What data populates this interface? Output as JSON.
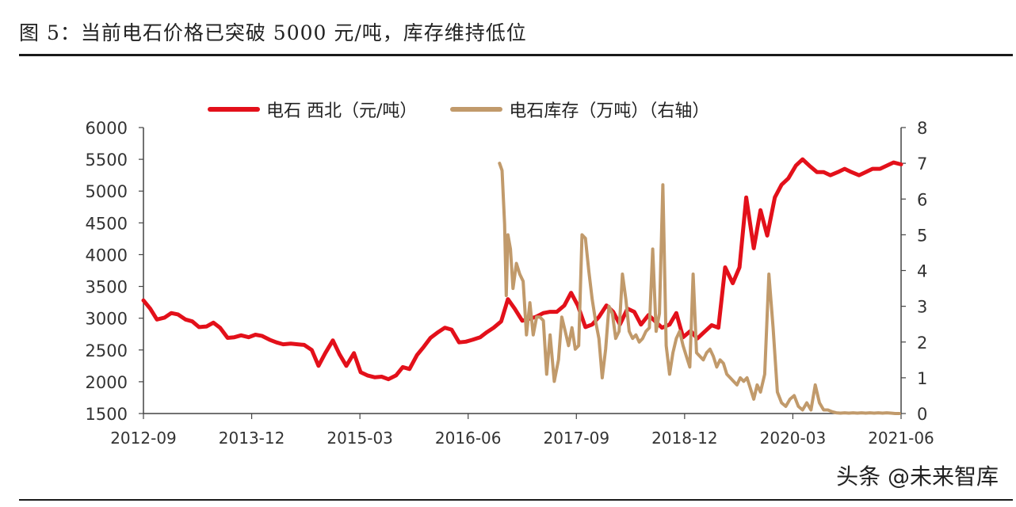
{
  "figure_title": "图 5：当前电石价格已突破 5000 元/吨，库存维持低位",
  "watermark": "头条 @未来智库",
  "colors": {
    "price": "#e3101a",
    "inventory": "#c19a6b",
    "axis": "#444444"
  },
  "chart_data": {
    "type": "line",
    "title": "",
    "x_labels": [
      "2012-09",
      "2013-12",
      "2015-03",
      "2016-06",
      "2017-09",
      "2018-12",
      "2020-03",
      "2021-06"
    ],
    "x_range": [
      2012.67,
      2021.67
    ],
    "y_left": {
      "range": [
        1500,
        6000
      ],
      "ticks": [
        1500,
        2000,
        2500,
        3000,
        3500,
        4000,
        4500,
        5000,
        5500,
        6000
      ]
    },
    "y_right": {
      "range": [
        0,
        8
      ],
      "ticks": [
        0,
        1,
        2,
        3,
        4,
        5,
        6,
        7,
        8
      ]
    },
    "series": [
      {
        "name": "电石 西北（元/吨）",
        "axis": "left",
        "color": "#e3101a",
        "x": [
          2012.67,
          2012.75,
          2012.83,
          2012.92,
          2013.0,
          2013.08,
          2013.17,
          2013.25,
          2013.33,
          2013.42,
          2013.5,
          2013.58,
          2013.67,
          2013.75,
          2013.83,
          2013.92,
          2014.0,
          2014.08,
          2014.17,
          2014.25,
          2014.33,
          2014.42,
          2014.5,
          2014.58,
          2014.67,
          2014.75,
          2014.83,
          2014.92,
          2015.0,
          2015.08,
          2015.17,
          2015.25,
          2015.33,
          2015.42,
          2015.5,
          2015.58,
          2015.67,
          2015.75,
          2015.83,
          2015.92,
          2016.0,
          2016.08,
          2016.17,
          2016.25,
          2016.33,
          2016.42,
          2016.5,
          2016.58,
          2016.67,
          2016.75,
          2016.83,
          2016.92,
          2017.0,
          2017.08,
          2017.17,
          2017.25,
          2017.33,
          2017.42,
          2017.5,
          2017.58,
          2017.67,
          2017.75,
          2017.83,
          2017.92,
          2018.0,
          2018.08,
          2018.17,
          2018.25,
          2018.33,
          2018.42,
          2018.5,
          2018.58,
          2018.67,
          2018.75,
          2018.83,
          2018.92,
          2019.0,
          2019.08,
          2019.17,
          2019.25,
          2019.33,
          2019.42,
          2019.5,
          2019.58,
          2019.67,
          2019.75,
          2019.83,
          2019.92,
          2020.0,
          2020.08,
          2020.17,
          2020.25,
          2020.33,
          2020.42,
          2020.5,
          2020.58,
          2020.67,
          2020.75,
          2020.83,
          2020.92,
          2021.0,
          2021.08,
          2021.17,
          2021.25,
          2021.33,
          2021.42,
          2021.5,
          2021.58,
          2021.67
        ],
        "y": [
          3280,
          3150,
          2980,
          3010,
          3080,
          3060,
          2980,
          2950,
          2860,
          2870,
          2930,
          2850,
          2690,
          2700,
          2730,
          2700,
          2740,
          2720,
          2660,
          2620,
          2590,
          2600,
          2590,
          2580,
          2500,
          2250,
          2450,
          2650,
          2430,
          2250,
          2450,
          2150,
          2100,
          2070,
          2080,
          2040,
          2100,
          2230,
          2200,
          2420,
          2550,
          2690,
          2780,
          2850,
          2820,
          2620,
          2630,
          2660,
          2700,
          2780,
          2850,
          2950,
          3300,
          3150,
          2960,
          2990,
          3020,
          3080,
          3100,
          3100,
          3200,
          3400,
          3200,
          2860,
          2900,
          3020,
          3200,
          3100,
          2900,
          3150,
          3100,
          2900,
          3050,
          2950,
          2850,
          2900,
          3080,
          2700,
          2800,
          2680,
          2780,
          2890,
          2850,
          3800,
          3550,
          3800,
          4900,
          4100,
          4700,
          4300,
          4900,
          5100,
          5200,
          5400,
          5500,
          5400,
          5300,
          5300,
          5250,
          5300,
          5350,
          5300,
          5250,
          5300,
          5350,
          5350,
          5400,
          5450,
          5420
        ]
      },
      {
        "name": "电石库存（万吨）（右轴）",
        "axis": "right",
        "color": "#c19a6b",
        "x": [
          2016.9,
          2016.93,
          2016.96,
          2016.98,
          2017.0,
          2017.03,
          2017.06,
          2017.1,
          2017.14,
          2017.18,
          2017.22,
          2017.26,
          2017.3,
          2017.34,
          2017.38,
          2017.42,
          2017.46,
          2017.5,
          2017.55,
          2017.6,
          2017.64,
          2017.68,
          2017.72,
          2017.76,
          2017.8,
          2017.84,
          2017.88,
          2017.92,
          2017.96,
          2018.0,
          2018.04,
          2018.08,
          2018.12,
          2018.16,
          2018.2,
          2018.24,
          2018.28,
          2018.32,
          2018.36,
          2018.4,
          2018.44,
          2018.48,
          2018.52,
          2018.56,
          2018.6,
          2018.64,
          2018.68,
          2018.72,
          2018.76,
          2018.8,
          2018.84,
          2018.88,
          2018.92,
          2018.96,
          2019.0,
          2019.04,
          2019.08,
          2019.12,
          2019.16,
          2019.2,
          2019.24,
          2019.28,
          2019.32,
          2019.36,
          2019.4,
          2019.44,
          2019.48,
          2019.52,
          2019.56,
          2019.6,
          2019.64,
          2019.68,
          2019.72,
          2019.76,
          2019.8,
          2019.84,
          2019.88,
          2019.92,
          2019.96,
          2020.0,
          2020.05,
          2020.1,
          2020.15,
          2020.2,
          2020.25,
          2020.3,
          2020.35,
          2020.4,
          2020.45,
          2020.5,
          2020.55,
          2020.6,
          2020.65,
          2020.7,
          2020.75,
          2020.8,
          2020.85,
          2020.9,
          2020.95,
          2021.0,
          2021.05,
          2021.1,
          2021.15,
          2021.2,
          2021.25,
          2021.3,
          2021.35,
          2021.4,
          2021.45,
          2021.5,
          2021.55,
          2021.6,
          2021.65
        ],
        "y": [
          7.0,
          6.8,
          5.3,
          3.3,
          5.0,
          4.6,
          3.5,
          4.2,
          3.9,
          3.7,
          2.2,
          3.1,
          2.2,
          2.7,
          2.7,
          2.6,
          1.1,
          2.2,
          0.9,
          1.5,
          2.7,
          2.3,
          1.9,
          2.4,
          1.8,
          1.9,
          5.0,
          4.9,
          4.0,
          3.2,
          2.6,
          2.1,
          1.0,
          1.8,
          3.0,
          2.8,
          2.1,
          2.3,
          3.9,
          3.2,
          2.3,
          2.1,
          2.2,
          2.0,
          2.1,
          2.3,
          2.4,
          4.6,
          2.3,
          2.8,
          6.4,
          1.9,
          1.1,
          1.7,
          2.1,
          2.3,
          1.9,
          1.6,
          1.3,
          3.9,
          1.7,
          1.6,
          1.5,
          1.7,
          1.8,
          1.6,
          1.3,
          1.5,
          1.4,
          1.1,
          1.0,
          0.9,
          0.8,
          1.0,
          0.9,
          1.0,
          0.7,
          0.4,
          0.8,
          0.6,
          1.1,
          3.9,
          2.4,
          0.6,
          0.3,
          0.2,
          0.4,
          0.5,
          0.2,
          0.1,
          0.3,
          0.1,
          0.8,
          0.3,
          0.1,
          0.1,
          0.05,
          0.02,
          0.01,
          0.02,
          0.01,
          0.02,
          0.01,
          0.02,
          0.01,
          0.02,
          0.01,
          0.02,
          0.01,
          0.02,
          0.01,
          0.0,
          0.0
        ]
      }
    ]
  }
}
